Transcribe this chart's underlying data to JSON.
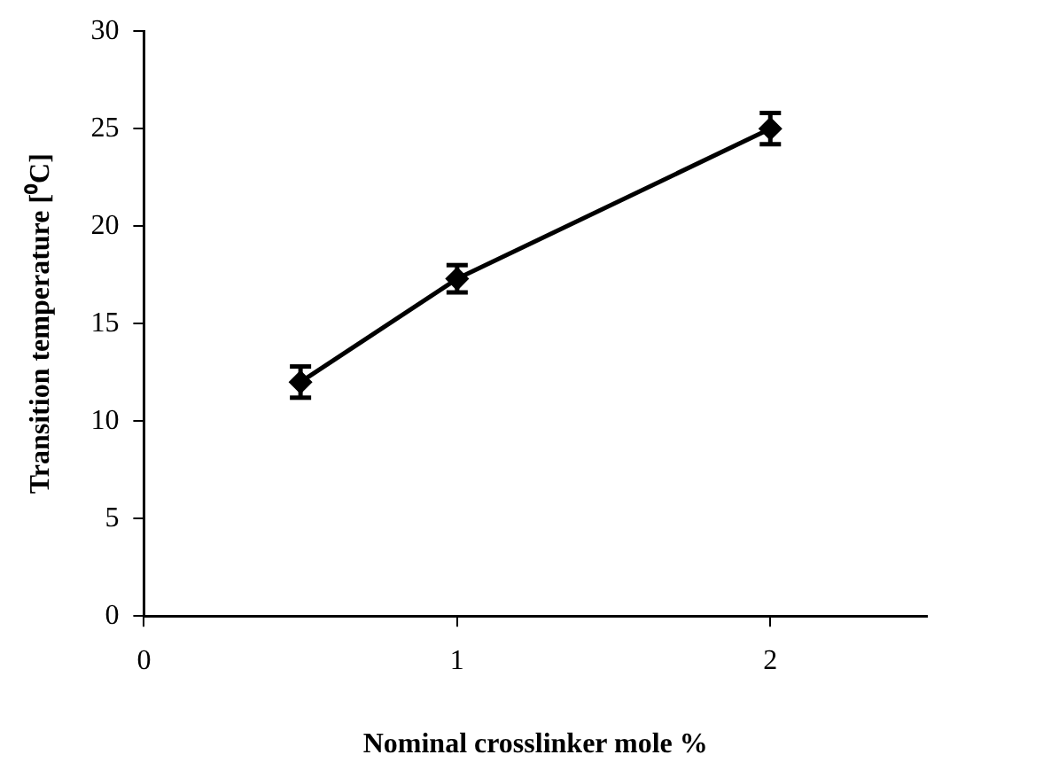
{
  "chart_data": {
    "type": "line",
    "xlabel": "Nominal crosslinker mole %",
    "ylabel": "Transition temperature [⁰C]",
    "x": [
      0.5,
      1,
      2
    ],
    "series": [
      {
        "color": "#000000",
        "values": [
          12,
          17.3,
          25
        ],
        "errors": [
          0.8,
          0.7,
          0.8
        ]
      }
    ],
    "xlim": [
      0,
      2.5
    ],
    "xticks": [
      0,
      1,
      2
    ],
    "ylim": [
      0,
      30
    ],
    "yticks": [
      0,
      5,
      10,
      15,
      20,
      25,
      30
    ],
    "grid": false,
    "legend": false,
    "marker": "diamond",
    "line_style": "solid"
  }
}
